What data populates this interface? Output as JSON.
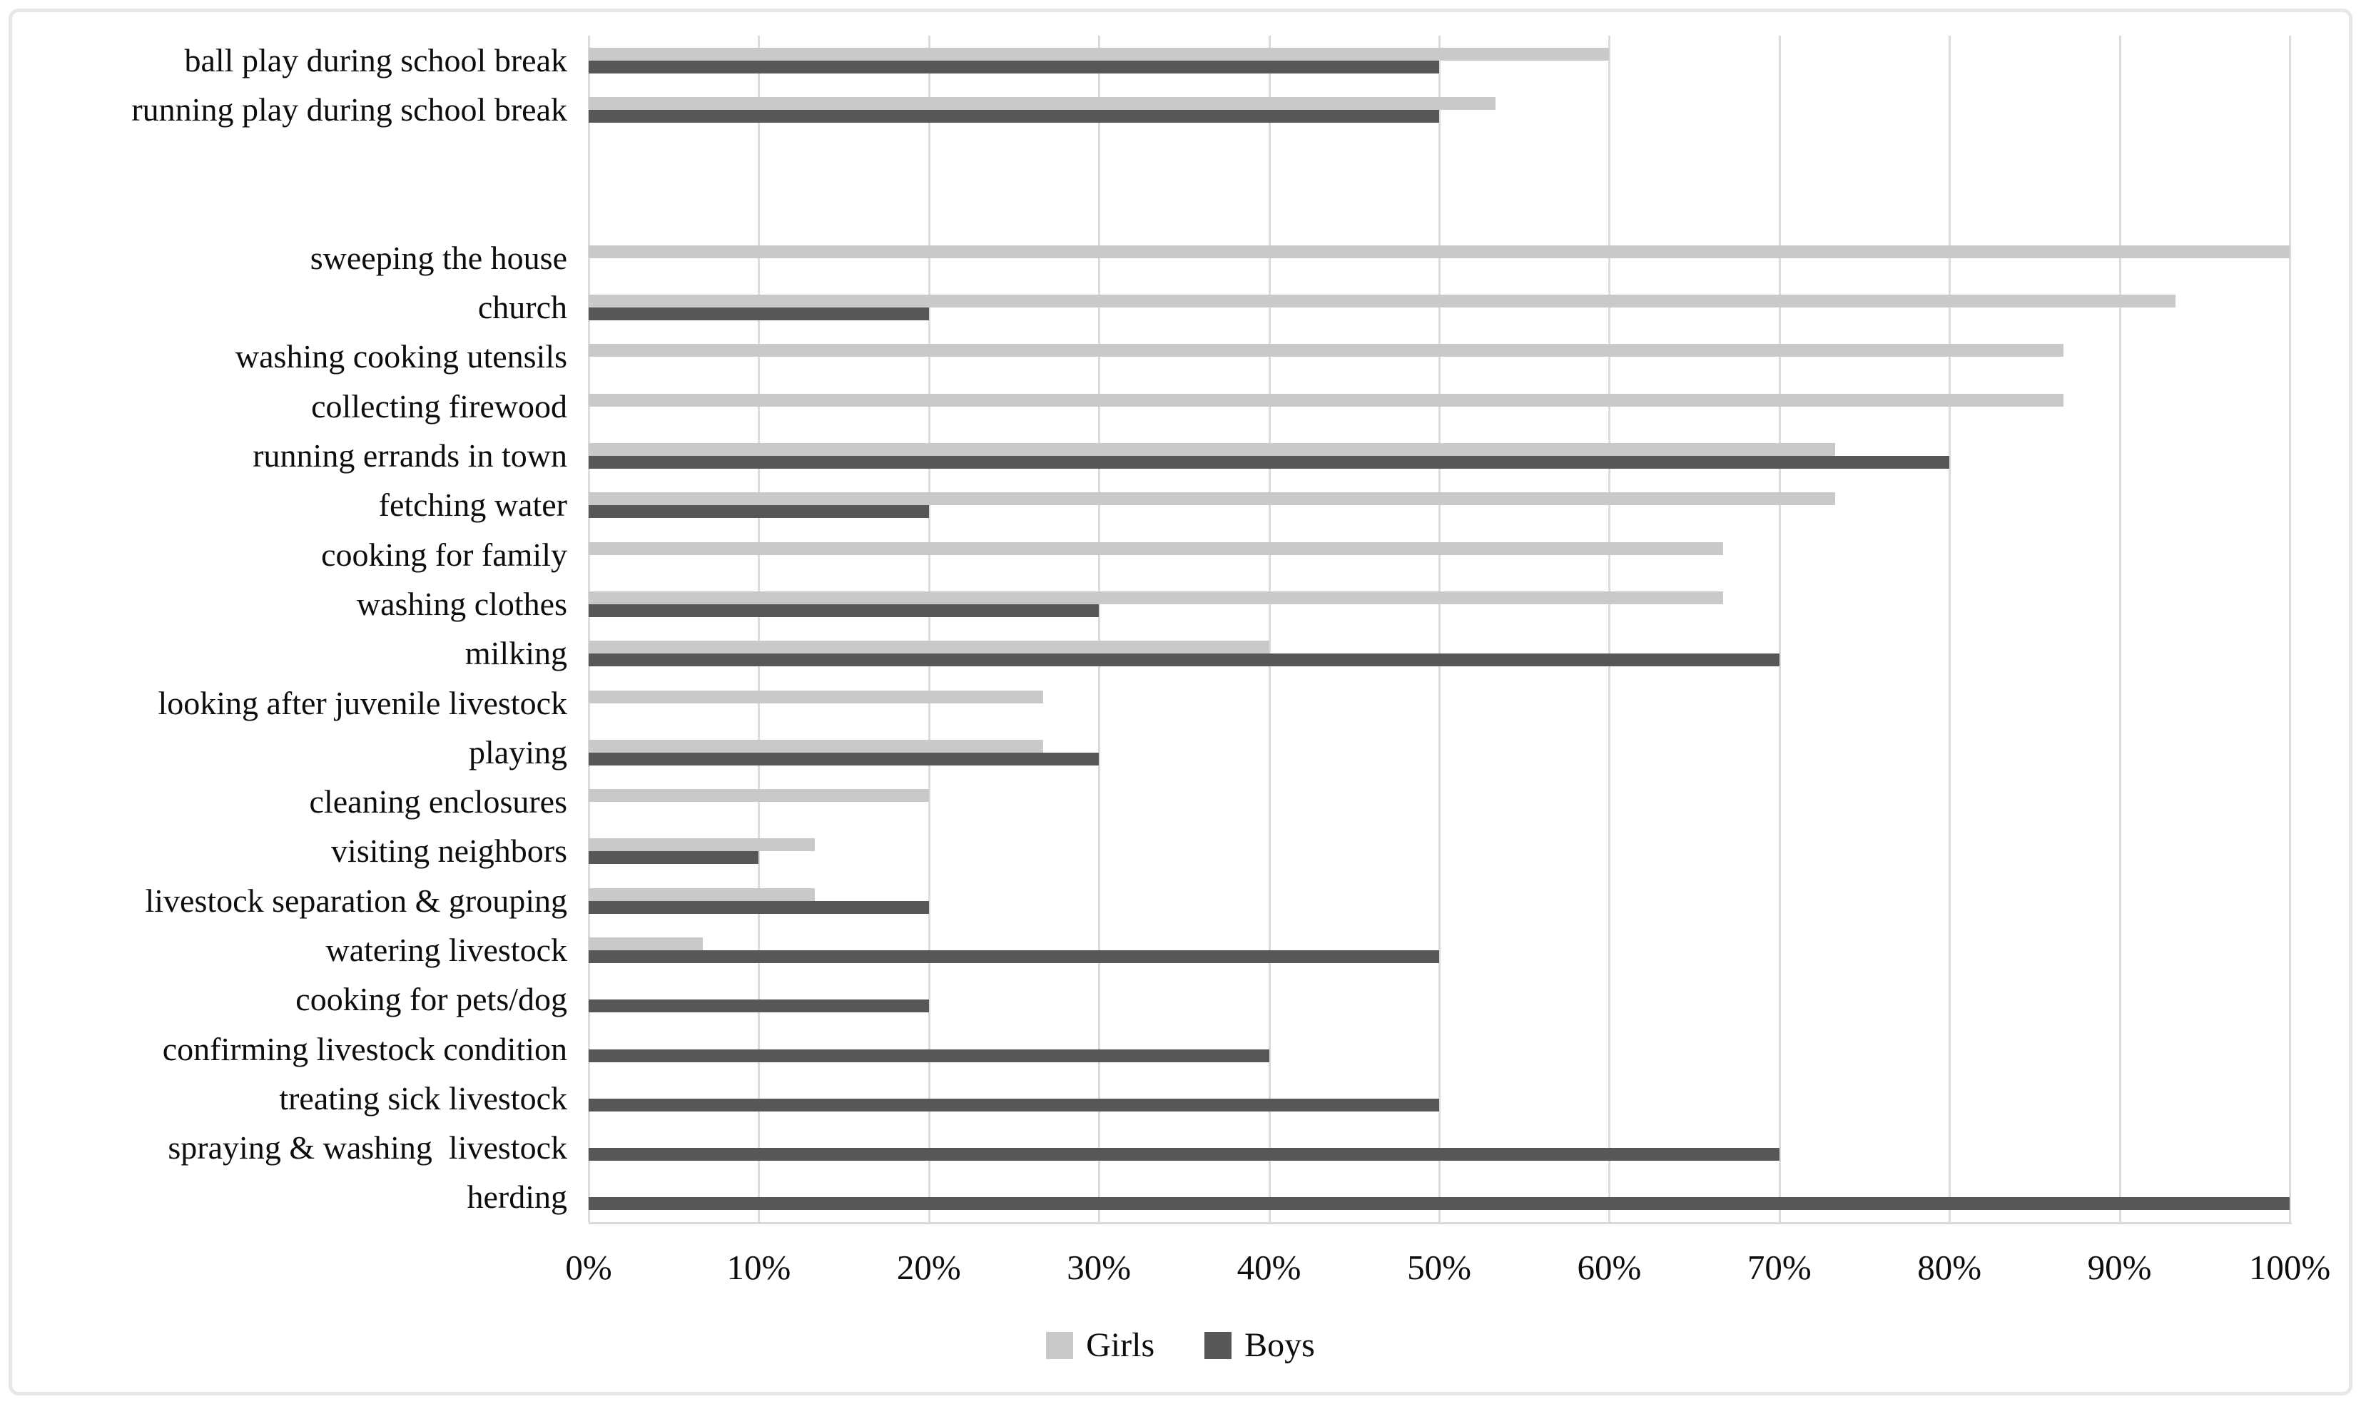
{
  "chart_data": {
    "type": "bar",
    "orientation": "horizontal",
    "title": "",
    "xlabel": "",
    "ylabel": "",
    "xlim": [
      0,
      100
    ],
    "x_ticks": [
      "0%",
      "10%",
      "20%",
      "30%",
      "40%",
      "50%",
      "60%",
      "70%",
      "80%",
      "90%",
      "100%"
    ],
    "grid": "vertical",
    "legend_position": "bottom-center",
    "legend": [
      {
        "name": "Girls",
        "color": "#c9c9c9"
      },
      {
        "name": "Boys",
        "color": "#575757"
      }
    ],
    "spacer_rows_between_groups": 2,
    "row_groups": [
      {
        "rows": [
          {
            "label": "ball play during school break",
            "girls": 60,
            "boys": 50
          },
          {
            "label": "running play during school break",
            "girls": 53.3,
            "boys": 50
          }
        ]
      },
      {
        "rows": [
          {
            "label": "sweeping the house",
            "girls": 100,
            "boys": null
          },
          {
            "label": "church",
            "girls": 93.3,
            "boys": 20
          },
          {
            "label": "washing cooking utensils",
            "girls": 86.7,
            "boys": null
          },
          {
            "label": "collecting firewood",
            "girls": 86.7,
            "boys": null
          },
          {
            "label": "running errands in town",
            "girls": 73.3,
            "boys": 80
          },
          {
            "label": "fetching water",
            "girls": 73.3,
            "boys": 20
          },
          {
            "label": "cooking for family",
            "girls": 66.7,
            "boys": null
          },
          {
            "label": "washing clothes",
            "girls": 66.7,
            "boys": 30
          },
          {
            "label": "milking",
            "girls": 40,
            "boys": 70
          },
          {
            "label": "looking after juvenile livestock",
            "girls": 26.7,
            "boys": null
          },
          {
            "label": "playing",
            "girls": 26.7,
            "boys": 30
          },
          {
            "label": "cleaning enclosures",
            "girls": 20,
            "boys": null
          },
          {
            "label": "visiting neighbors",
            "girls": 13.3,
            "boys": 10
          },
          {
            "label": "livestock separation & grouping",
            "girls": 13.3,
            "boys": 20
          },
          {
            "label": "watering livestock",
            "girls": 6.7,
            "boys": 50
          },
          {
            "label": "cooking for pets/dog",
            "girls": null,
            "boys": 20
          },
          {
            "label": "confirming livestock condition",
            "girls": null,
            "boys": 40
          },
          {
            "label": "treating sick livestock",
            "girls": null,
            "boys": 50
          },
          {
            "label": "spraying & washing  livestock",
            "girls": null,
            "boys": 70
          },
          {
            "label": "herding",
            "girls": null,
            "boys": 100
          }
        ]
      }
    ],
    "colors": {
      "girls_bar": "#c9c9c9",
      "boys_bar": "#575757",
      "gridline": "#dcdcdc",
      "axis_line": "#d9d9d9"
    }
  }
}
